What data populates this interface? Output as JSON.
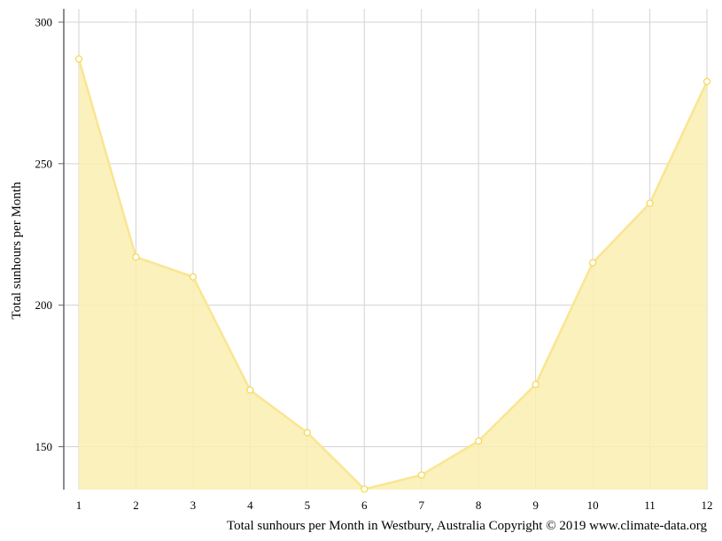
{
  "chart_data": {
    "type": "area",
    "x": [
      1,
      2,
      3,
      4,
      5,
      6,
      7,
      8,
      9,
      10,
      11,
      12
    ],
    "categories": [
      "1",
      "2",
      "3",
      "4",
      "5",
      "6",
      "7",
      "8",
      "9",
      "10",
      "11",
      "12"
    ],
    "series": [
      {
        "values": [
          287,
          217,
          210,
          170,
          155,
          135,
          140,
          152,
          172,
          215,
          236,
          279
        ]
      }
    ],
    "ylabel": "Total sunhours per Month",
    "xlabel": "",
    "caption": "Total sunhours per Month in Westbury, Australia Copyright © 2019 www.climate-data.org",
    "ylim": [
      135,
      303
    ],
    "yticks": [
      150,
      200,
      250,
      300
    ],
    "grid": true,
    "colors": {
      "fill": "#faeeb0",
      "line": "#fae591",
      "marker_fill": "#ffffff",
      "marker_stroke": "#f6d752",
      "grid": "#d3d3d3",
      "axis": "#666666"
    }
  }
}
